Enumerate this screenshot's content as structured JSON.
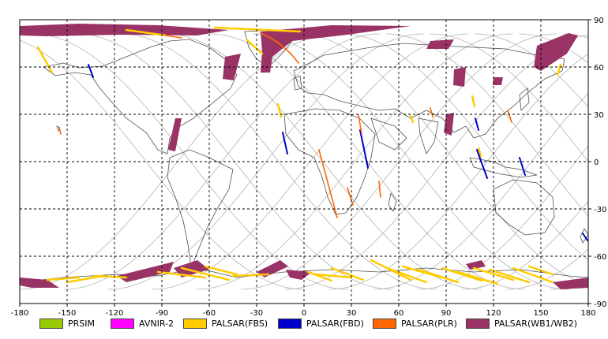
{
  "map": {
    "lon_ticks": [
      "-180",
      "-150",
      "-120",
      "-90",
      "-60",
      "-30",
      "0",
      "30",
      "60",
      "90",
      "120",
      "150",
      "180"
    ],
    "lat_ticks": [
      "90",
      "60",
      "30",
      "0",
      "-30",
      "-60",
      "-90"
    ],
    "lon_range": [
      -180,
      180
    ],
    "lat_range": [
      -90,
      90
    ],
    "grid": "dashed every 30 degrees",
    "background": "#ffffff",
    "coastline_color": "#505050",
    "orbit_track_color": "#b4b4b4"
  },
  "legend": [
    {
      "label": "PRSIM",
      "color": "#99cc00"
    },
    {
      "label": "AVNIR-2",
      "color": "#ff00ff"
    },
    {
      "label": "PALSAR(FBS)",
      "color": "#ffcc00"
    },
    {
      "label": "PALSAR(FBD)",
      "color": "#0000cc"
    },
    {
      "label": "PALSAR(PLR)",
      "color": "#ff6600"
    },
    {
      "label": "PALSAR(WB1/WB2)",
      "color": "#993366"
    }
  ]
}
